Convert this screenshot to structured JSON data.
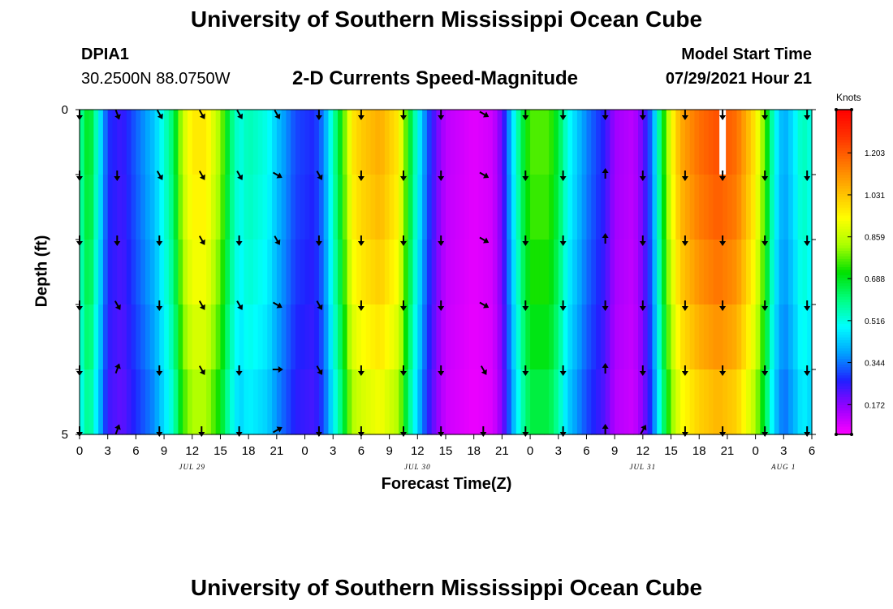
{
  "header": {
    "title": "University of Southern Mississippi Ocean Cube",
    "station": "DPIA1",
    "coords": "30.2500N  88.0750W",
    "subtitle": "2-D Currents Speed-Magnitude",
    "model_start_label": "Model Start Time",
    "model_start_value": "07/29/2021 Hour 21"
  },
  "footer": {
    "title": "University of Southern Mississippi Ocean Cube"
  },
  "colors": {
    "scale": [
      "#ff00ff",
      "#9900ff",
      "#2020ff",
      "#00a0ff",
      "#00ffff",
      "#00ff80",
      "#00e000",
      "#aaff00",
      "#ffff00",
      "#ffbb00",
      "#ff7700",
      "#ff3300",
      "#ff0000"
    ],
    "arrow": "#000000",
    "marker": "#ffffff"
  },
  "chart_data": {
    "type": "heatmap",
    "title": "2-D Currents Speed-Magnitude",
    "xlabel": "Forecast Time(Z)",
    "ylabel": "Depth (ft)",
    "x_tick_labels": [
      "0",
      "3",
      "6",
      "9",
      "12",
      "15",
      "18",
      "21",
      "0",
      "3",
      "6",
      "9",
      "12",
      "15",
      "18",
      "21",
      "0",
      "3",
      "6",
      "9",
      "12",
      "15",
      "18",
      "21",
      "0",
      "3",
      "6"
    ],
    "date_labels": [
      {
        "text": "JUL 29",
        "hours_from_start": 12
      },
      {
        "text": "JUL 30",
        "hours_from_start": 36
      },
      {
        "text": "JUL 31",
        "hours_from_start": 60
      },
      {
        "text": "AUG 1",
        "hours_from_start": 75
      }
    ],
    "x_range_hours": [
      0,
      78
    ],
    "y_range_ft": [
      0,
      5
    ],
    "y_tick_labels": [
      "0",
      "5"
    ],
    "depth_levels": 5,
    "marker_hour": 68.5,
    "colorbar": {
      "unit": "Knots",
      "range": [
        0.05,
        1.38
      ],
      "tick_labels": [
        "0.172",
        "0.344",
        "0.516",
        "0.688",
        "0.859",
        "1.031",
        "1.203"
      ]
    },
    "speed_profile": [
      {
        "h": 0,
        "v": 0.55
      },
      {
        "h": 1,
        "v": 0.7
      },
      {
        "h": 2,
        "v": 0.5
      },
      {
        "h": 3,
        "v": 0.28
      },
      {
        "h": 4.5,
        "v": 0.24
      },
      {
        "h": 6,
        "v": 0.32
      },
      {
        "h": 8,
        "v": 0.42
      },
      {
        "h": 10,
        "v": 0.62
      },
      {
        "h": 11,
        "v": 0.85
      },
      {
        "h": 12,
        "v": 0.95
      },
      {
        "h": 13.5,
        "v": 0.95
      },
      {
        "h": 15,
        "v": 0.8
      },
      {
        "h": 16,
        "v": 0.62
      },
      {
        "h": 17,
        "v": 0.5
      },
      {
        "h": 18,
        "v": 0.55
      },
      {
        "h": 20,
        "v": 0.5
      },
      {
        "h": 21,
        "v": 0.42
      },
      {
        "h": 23,
        "v": 0.3
      },
      {
        "h": 25,
        "v": 0.27
      },
      {
        "h": 26,
        "v": 0.35
      },
      {
        "h": 27,
        "v": 0.55
      },
      {
        "h": 28,
        "v": 0.72
      },
      {
        "h": 29,
        "v": 0.95
      },
      {
        "h": 30,
        "v": 1.0
      },
      {
        "h": 32,
        "v": 1.05
      },
      {
        "h": 34,
        "v": 0.95
      },
      {
        "h": 35,
        "v": 0.7
      },
      {
        "h": 36,
        "v": 0.5
      },
      {
        "h": 37,
        "v": 0.32
      },
      {
        "h": 38,
        "v": 0.2
      },
      {
        "h": 39,
        "v": 0.12
      },
      {
        "h": 42,
        "v": 0.08
      },
      {
        "h": 44,
        "v": 0.1
      },
      {
        "h": 45,
        "v": 0.2
      },
      {
        "h": 46,
        "v": 0.42
      },
      {
        "h": 47,
        "v": 0.62
      },
      {
        "h": 48,
        "v": 0.75
      },
      {
        "h": 50,
        "v": 0.75
      },
      {
        "h": 51,
        "v": 0.65
      },
      {
        "h": 52,
        "v": 0.5
      },
      {
        "h": 54,
        "v": 0.35
      },
      {
        "h": 56,
        "v": 0.25
      },
      {
        "h": 57,
        "v": 0.15
      },
      {
        "h": 59,
        "v": 0.12
      },
      {
        "h": 60,
        "v": 0.2
      },
      {
        "h": 61,
        "v": 0.35
      },
      {
        "h": 62,
        "v": 0.65
      },
      {
        "h": 63,
        "v": 0.9
      },
      {
        "h": 64,
        "v": 1.05
      },
      {
        "h": 66,
        "v": 1.15
      },
      {
        "h": 68,
        "v": 1.2
      },
      {
        "h": 70,
        "v": 1.15
      },
      {
        "h": 72,
        "v": 0.95
      },
      {
        "h": 73,
        "v": 0.75
      },
      {
        "h": 74,
        "v": 0.5
      },
      {
        "h": 75,
        "v": 0.38
      },
      {
        "h": 76,
        "v": 0.45
      },
      {
        "h": 77,
        "v": 0.55
      },
      {
        "h": 78,
        "v": 0.5
      }
    ],
    "depth_factors": [
      1.02,
      1.0,
      0.97,
      0.93,
      0.88
    ],
    "arrows": {
      "hours": [
        0,
        4,
        8.5,
        13,
        17,
        21,
        25.5,
        30,
        34.5,
        38.5,
        43,
        47.5,
        51.5,
        56,
        60,
        64.5,
        68.5,
        73,
        77.5
      ],
      "directions_deg": [
        [
          180,
          160,
          150,
          150,
          150,
          150,
          180,
          180,
          180,
          180,
          120,
          180,
          180,
          180,
          180,
          180,
          180,
          180,
          180
        ],
        [
          180,
          180,
          150,
          150,
          150,
          120,
          150,
          180,
          180,
          180,
          120,
          180,
          180,
          0,
          180,
          180,
          180,
          180,
          180
        ],
        [
          180,
          180,
          180,
          150,
          180,
          150,
          180,
          180,
          180,
          180,
          120,
          180,
          180,
          0,
          180,
          180,
          180,
          180,
          180
        ],
        [
          180,
          150,
          180,
          150,
          150,
          120,
          150,
          180,
          180,
          180,
          120,
          180,
          180,
          180,
          180,
          180,
          180,
          180,
          180
        ],
        [
          180,
          20,
          180,
          150,
          180,
          90,
          150,
          180,
          180,
          180,
          150,
          180,
          180,
          0,
          180,
          180,
          180,
          180,
          180
        ],
        [
          180,
          20,
          180,
          180,
          180,
          60,
          180,
          180,
          180,
          180,
          180,
          180,
          180,
          0,
          30,
          180,
          180,
          180,
          180
        ]
      ]
    }
  }
}
